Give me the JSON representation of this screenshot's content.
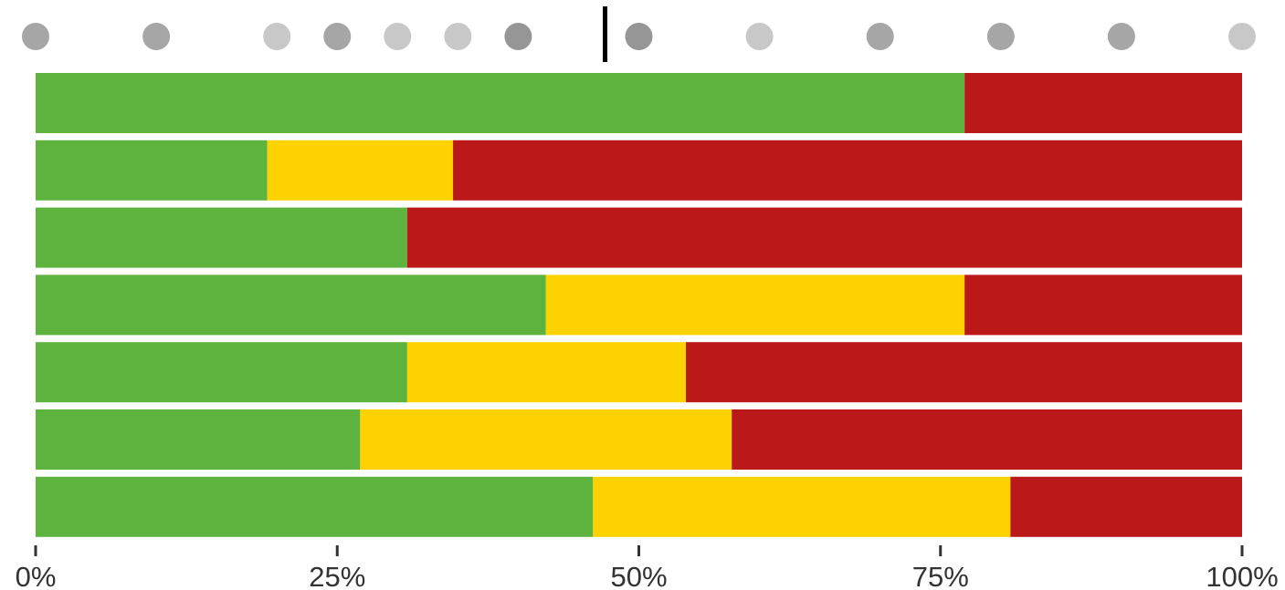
{
  "chart_data": {
    "type": "bar",
    "orientation": "horizontal",
    "stacked": true,
    "percent_scale": true,
    "xlim": [
      0,
      100
    ],
    "x_ticks": [
      "0%",
      "25%",
      "50%",
      "75%",
      "100%"
    ],
    "x_tick_values": [
      0,
      25,
      50,
      75,
      100
    ],
    "grid": false,
    "legend": "none",
    "colors": {
      "green": "#5db33d",
      "yellow": "#fcd300",
      "red": "#bb181a"
    },
    "rows": [
      {
        "segments": [
          {
            "color": "green",
            "value": 77
          },
          {
            "color": "red",
            "value": 23
          }
        ]
      },
      {
        "segments": [
          {
            "color": "green",
            "value": 19.2
          },
          {
            "color": "yellow",
            "value": 15.4
          },
          {
            "color": "red",
            "value": 65.4
          }
        ]
      },
      {
        "segments": [
          {
            "color": "green",
            "value": 30.8
          },
          {
            "color": "red",
            "value": 69.2
          }
        ]
      },
      {
        "segments": [
          {
            "color": "green",
            "value": 42.3
          },
          {
            "color": "yellow",
            "value": 34.7
          },
          {
            "color": "red",
            "value": 23
          }
        ]
      },
      {
        "segments": [
          {
            "color": "green",
            "value": 30.8
          },
          {
            "color": "yellow",
            "value": 23.1
          },
          {
            "color": "red",
            "value": 46.1
          }
        ]
      },
      {
        "segments": [
          {
            "color": "green",
            "value": 26.9
          },
          {
            "color": "yellow",
            "value": 30.8
          },
          {
            "color": "red",
            "value": 42.3
          }
        ]
      },
      {
        "segments": [
          {
            "color": "green",
            "value": 46.2
          },
          {
            "color": "yellow",
            "value": 34.6
          },
          {
            "color": "red",
            "value": 19.2
          }
        ]
      }
    ],
    "marker_line": {
      "value": 47.2
    },
    "dots": [
      {
        "value": 0,
        "shade": "#a6a6a6"
      },
      {
        "value": 10,
        "shade": "#a6a6a6"
      },
      {
        "value": 20,
        "shade": "#c8c8c8"
      },
      {
        "value": 25,
        "shade": "#a6a6a6"
      },
      {
        "value": 30,
        "shade": "#c8c8c8"
      },
      {
        "value": 35,
        "shade": "#c8c8c8"
      },
      {
        "value": 40,
        "shade": "#969696"
      },
      {
        "value": 50,
        "shade": "#969696"
      },
      {
        "value": 60,
        "shade": "#c8c8c8"
      },
      {
        "value": 70,
        "shade": "#a6a6a6"
      },
      {
        "value": 80,
        "shade": "#a6a6a6"
      },
      {
        "value": 90,
        "shade": "#a6a6a6"
      },
      {
        "value": 100,
        "shade": "#c8c8c8"
      }
    ]
  }
}
